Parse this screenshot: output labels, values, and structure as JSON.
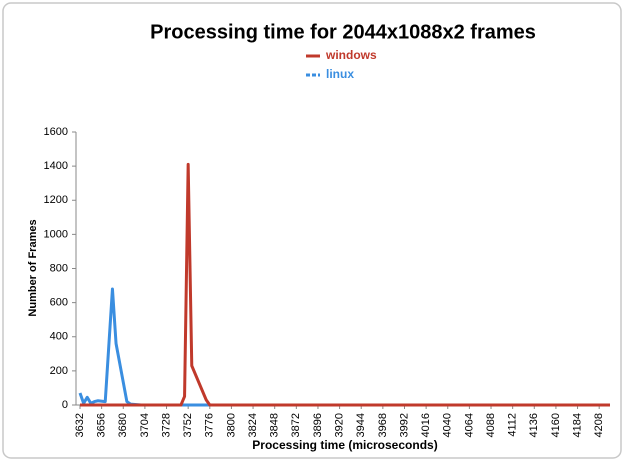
{
  "chart_data": {
    "type": "line",
    "title": "Processing time for 2044x1088x2 frames",
    "x_label": "Processing time (microseconds)",
    "y_label": "Number of Frames",
    "x": [
      3632,
      3636,
      3640,
      3644,
      3648,
      3652,
      3660,
      3668,
      3672,
      3684,
      3688,
      3700,
      3744,
      3748,
      3752,
      3756,
      3772,
      3776,
      4220
    ],
    "series": [
      {
        "name": "windows",
        "color": "#c0392b",
        "values": [
          0,
          0,
          0,
          0,
          0,
          0,
          0,
          0,
          0,
          0,
          0,
          0,
          0,
          50,
          1410,
          230,
          30,
          0,
          0
        ]
      },
      {
        "name": "linux",
        "color": "#3a8ee0",
        "values": [
          70,
          10,
          45,
          10,
          20,
          25,
          20,
          680,
          360,
          20,
          5,
          0,
          0,
          0,
          0,
          0,
          0,
          0,
          0
        ]
      }
    ],
    "xlim": [
      3632,
      4220
    ],
    "xticks": [
      3632,
      3656,
      3680,
      3704,
      3728,
      3752,
      3776,
      3800,
      3824,
      3848,
      3872,
      3896,
      3920,
      3944,
      3968,
      3992,
      4016,
      4040,
      4064,
      4088,
      4112,
      4136,
      4160,
      4184,
      4208
    ],
    "ylim": [
      0,
      1600
    ],
    "yticks": [
      0,
      200,
      400,
      600,
      800,
      1000,
      1200,
      1400,
      1600
    ],
    "legend": "top"
  }
}
